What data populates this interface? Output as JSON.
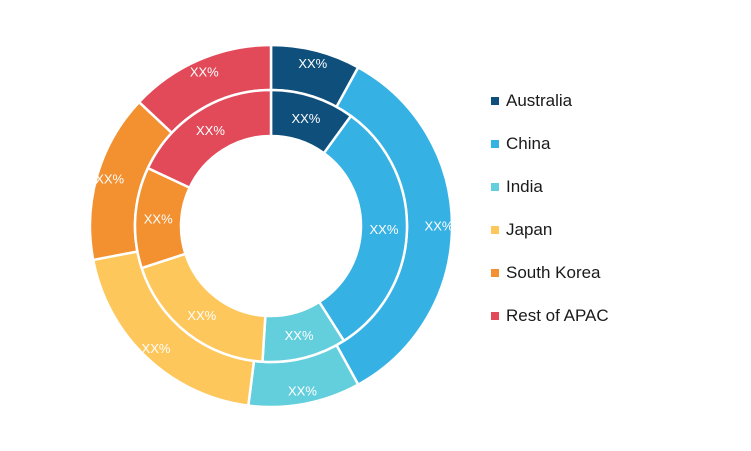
{
  "chart_data": {
    "type": "pie",
    "variant": "nested-donut",
    "categories": [
      "Australia",
      "China",
      "India",
      "Japan",
      "South Korea",
      "Rest of APAC"
    ],
    "colors": [
      "#0f4f7c",
      "#36b1e4",
      "#64cfdc",
      "#fdc75b",
      "#f39030",
      "#e24a59"
    ],
    "series": [
      {
        "ring": "outer",
        "values": [
          8,
          34,
          10,
          20,
          15,
          13
        ],
        "labels": [
          "XX%",
          "XX%",
          "XX%",
          "XX%",
          "XX%",
          "XX%"
        ]
      },
      {
        "ring": "inner",
        "values": [
          10,
          31,
          10,
          19,
          12,
          18
        ],
        "labels": [
          "XX%",
          "XX%",
          "XX%",
          "XX%",
          "XX%",
          "XX%"
        ]
      }
    ],
    "legend": {
      "position": "right",
      "items": [
        "Australia",
        "China",
        "India",
        "Japan",
        "South Korea",
        "Rest of APAC"
      ]
    }
  }
}
